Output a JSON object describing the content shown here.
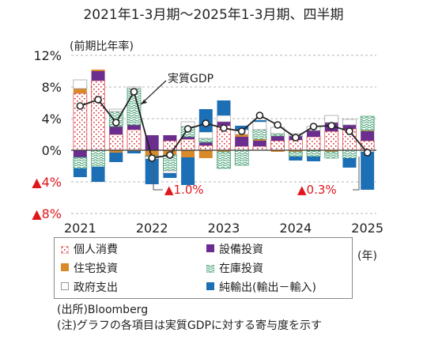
{
  "title": "2021年1-3月期～2025年1-3月期、四半期",
  "unit_label": "(前期比年率)",
  "x_unit_label": "(年)",
  "source": "(出所)Bloomberg",
  "note": "(注)グラフの各項目は実質GDPに対する寄与度を示す",
  "annotations": {
    "gdp_line": "実質GDP",
    "low1": "▲1.0%",
    "low2": "▲0.3%"
  },
  "colors": {
    "consumption": "#d9343a",
    "capex": "#6b2d8e",
    "housing": "#d8892a",
    "inventory": "#3a9a6c",
    "government": "#999999",
    "net_exports": "#1d6fb5",
    "negative_label": "#e0161c"
  },
  "chart_data": {
    "type": "bar",
    "subtype": "stacked bar with line",
    "categories": [
      "2021Q1",
      "2021Q2",
      "2021Q3",
      "2021Q4",
      "2022Q1",
      "2022Q2",
      "2022Q3",
      "2022Q4",
      "2023Q1",
      "2023Q2",
      "2023Q3",
      "2023Q4",
      "2024Q1",
      "2024Q2",
      "2024Q3",
      "2024Q4",
      "2025Q1"
    ],
    "x_tick_labels": [
      "2021",
      "2022",
      "2023",
      "2024",
      "2025"
    ],
    "y_tick_labels": [
      "12%",
      "8%",
      "4%",
      "0%",
      "▲4%",
      "▲8%"
    ],
    "ylim": [
      -8,
      12
    ],
    "y_ticks": [
      12,
      8,
      4,
      0,
      -4,
      -8
    ],
    "grid": "dashed horizontal",
    "series": [
      {
        "name": "個人消費",
        "key": "consumption",
        "values": [
          7.2,
          8.8,
          2.0,
          2.6,
          0.0,
          1.2,
          1.4,
          0.6,
          3.1,
          0.5,
          0.5,
          1.2,
          1.3,
          1.7,
          2.4,
          2.7,
          1.2
        ]
      },
      {
        "name": "設備投資",
        "key": "capex",
        "values": [
          -0.9,
          1.2,
          1.0,
          0.6,
          1.9,
          0.7,
          0.3,
          0.4,
          0.5,
          1.2,
          0.7,
          0.6,
          0.5,
          0.8,
          1.1,
          0.5,
          1.2
        ]
      },
      {
        "name": "住宅投資",
        "key": "housing",
        "values": [
          0.6,
          0.2,
          -0.3,
          -0.1,
          -0.7,
          -0.6,
          -0.9,
          -1.0,
          -0.2,
          0.3,
          0.2,
          -0.2,
          -0.2,
          -0.1,
          -0.2,
          0.0,
          0.1
        ]
      },
      {
        "name": "在庫投資",
        "key": "inventory",
        "values": [
          -1.4,
          -2.1,
          1.9,
          4.6,
          -0.1,
          -2.0,
          1.3,
          0.5,
          -2.1,
          -1.9,
          1.2,
          0.3,
          -0.6,
          -0.7,
          -0.8,
          -1.0,
          1.8
        ]
      },
      {
        "name": "政府支出",
        "key": "government",
        "values": [
          1.1,
          0.0,
          0.3,
          0.2,
          -0.3,
          -0.3,
          0.6,
          0.8,
          0.8,
          0.6,
          1.0,
          0.8,
          0.3,
          0.5,
          0.9,
          0.7,
          -0.2
        ]
      },
      {
        "name": "純輸出(輸出－輸入)",
        "key": "net_exports",
        "values": [
          -1.1,
          -1.9,
          -1.2,
          -0.3,
          -3.2,
          -0.6,
          -3.5,
          2.9,
          1.9,
          0.5,
          0.2,
          0.0,
          -0.5,
          -0.6,
          0.0,
          -1.2,
          -4.8
        ]
      }
    ],
    "line": {
      "name": "実質GDP",
      "values": [
        5.6,
        6.4,
        3.5,
        7.4,
        -1.0,
        -0.6,
        2.7,
        3.4,
        2.8,
        2.4,
        4.4,
        3.2,
        1.6,
        3.0,
        3.1,
        2.4,
        -0.3
      ]
    }
  }
}
